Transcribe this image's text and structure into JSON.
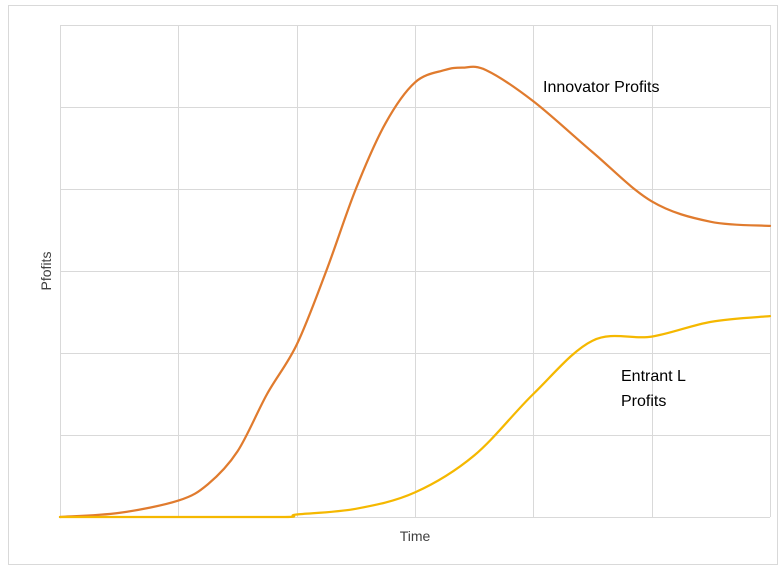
{
  "chart_data": {
    "type": "line",
    "title": "",
    "xlabel": "Time",
    "ylabel": "Pfofits",
    "xlim": [
      0,
      6
    ],
    "ylim": [
      0,
      6
    ],
    "grid": true,
    "legend": "none",
    "series": [
      {
        "name": "Innovator Profits",
        "color": "#E07B2E",
        "x": [
          0,
          0.5,
          1,
          1.25,
          1.5,
          1.75,
          2,
          2.25,
          2.5,
          2.75,
          3,
          3.25,
          3.4,
          3.6,
          4,
          4.5,
          5,
          5.5,
          6
        ],
        "y": [
          0,
          0.05,
          0.2,
          0.4,
          0.8,
          1.5,
          2.1,
          3.0,
          4.0,
          4.8,
          5.3,
          5.45,
          5.48,
          5.45,
          5.07,
          4.45,
          3.85,
          3.6,
          3.55
        ]
      },
      {
        "name": "Entrant L Profits",
        "color": "#F5B800",
        "x": [
          0,
          1,
          1.9,
          2,
          2.5,
          3,
          3.5,
          4,
          4.5,
          5,
          5.5,
          6
        ],
        "y": [
          0,
          0,
          0,
          0.03,
          0.1,
          0.3,
          0.75,
          1.5,
          2.15,
          2.2,
          2.38,
          2.45
        ]
      }
    ],
    "annotations": [
      {
        "lines": [
          "Innovator Profits"
        ],
        "series": 0
      },
      {
        "lines": [
          "Entrant L",
          "Profits"
        ],
        "series": 1
      }
    ]
  }
}
